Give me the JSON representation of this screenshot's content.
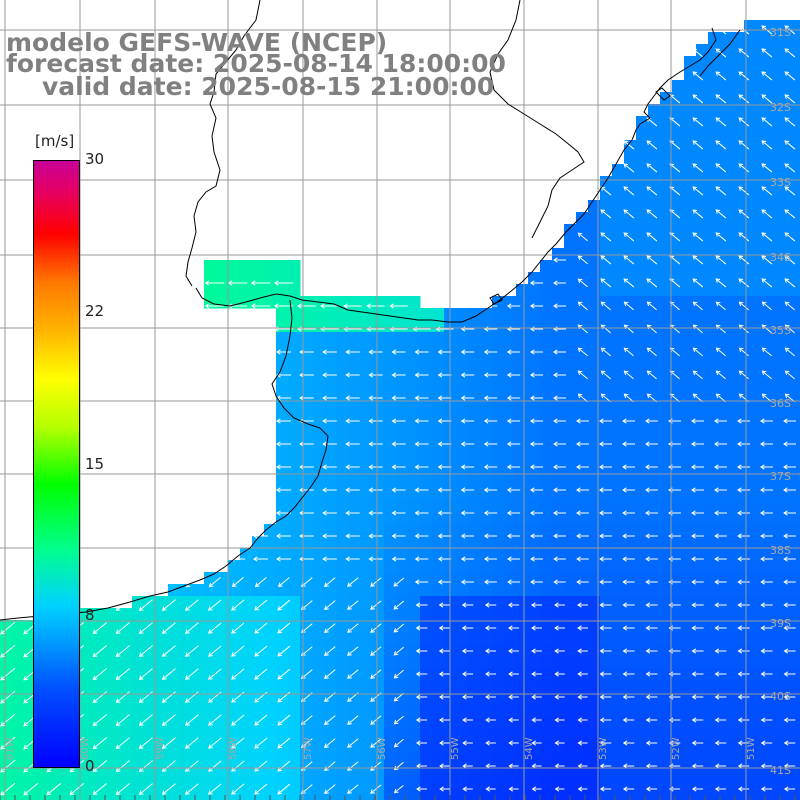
{
  "title": {
    "model": "modelo GEFS-WAVE (NCEP)",
    "forecast": "forecast date: 2025-08-14 18:00:00",
    "valid": "valid date: 2025-08-15 21:00:00"
  },
  "colorbar": {
    "unit": "[m/s]",
    "ticks": [
      {
        "label": "30",
        "value": 30
      },
      {
        "label": "22",
        "value": 22
      },
      {
        "label": "15",
        "value": 15
      },
      {
        "label": "8",
        "value": 8
      },
      {
        "label": "0",
        "value": 0
      }
    ],
    "range": [
      0,
      30
    ]
  },
  "grid": {
    "lon_labels": [
      "61W",
      "60W",
      "59W",
      "58W",
      "57W",
      "56W",
      "55W",
      "54W",
      "53W",
      "52W",
      "51W"
    ],
    "lat_labels": [
      "31S",
      "32S",
      "33S",
      "34S",
      "35S",
      "36S",
      "37S",
      "38S",
      "39S",
      "40S",
      "41S"
    ]
  },
  "colors": {
    "grid_line": "#999999",
    "coast": "#000000",
    "arrow": "#ffffff",
    "title": "#808080"
  }
}
